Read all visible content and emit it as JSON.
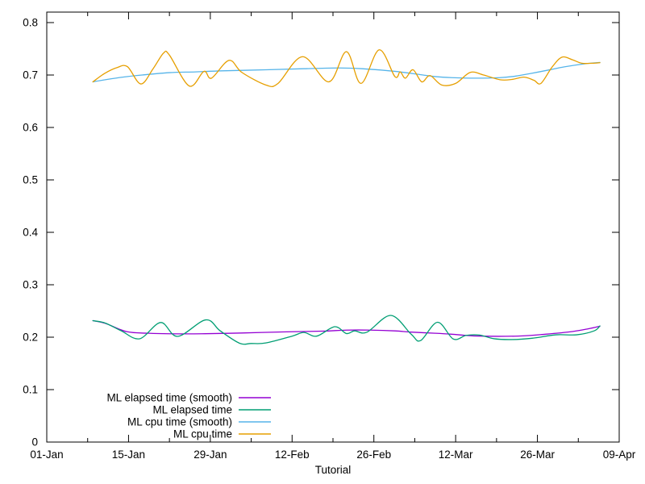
{
  "colors": {
    "background": "#FFFFFF",
    "axis": "#000000",
    "text": "#000000"
  },
  "chart_data": {
    "type": "line",
    "title": "",
    "xlabel": "Tutorial",
    "legend_position": "bottom-left-inside",
    "x_axis": {
      "unit": "date-days-since-jan-1",
      "range_days": [
        0,
        98
      ],
      "major_ticks": [
        {
          "day": 0,
          "label": "01-Jan"
        },
        {
          "day": 14,
          "label": "15-Jan"
        },
        {
          "day": 28,
          "label": "29-Jan"
        },
        {
          "day": 42,
          "label": "12-Feb"
        },
        {
          "day": 56,
          "label": "26-Feb"
        },
        {
          "day": 70,
          "label": "12-Mar"
        },
        {
          "day": 84,
          "label": "26-Mar"
        },
        {
          "day": 98,
          "label": "09-Apr"
        }
      ],
      "minor_tick_days": [
        7,
        21,
        35,
        49,
        63,
        77,
        91
      ]
    },
    "y_axis": {
      "range": [
        0,
        0.82
      ],
      "tick_values": [
        0,
        0.1,
        0.2,
        0.3,
        0.4,
        0.5,
        0.6,
        0.7,
        0.8
      ],
      "tick_labels": [
        "0",
        "0.1",
        "0.2",
        "0.3",
        "0.4",
        "0.5",
        "0.6",
        "0.7",
        "0.8"
      ],
      "grid": false
    },
    "series": [
      {
        "name": "ML elapsed time (smooth)",
        "color": "#9400D3",
        "points": [
          [
            7.9,
            0.2315
          ],
          [
            10,
            0.2265
          ],
          [
            13.7,
            0.2105
          ],
          [
            17.5,
            0.2075
          ],
          [
            21,
            0.2065
          ],
          [
            26.5,
            0.2065
          ],
          [
            33.4,
            0.208
          ],
          [
            40.3,
            0.21
          ],
          [
            47.2,
            0.2115
          ],
          [
            51.3,
            0.2135
          ],
          [
            55.5,
            0.2135
          ],
          [
            59.6,
            0.212
          ],
          [
            62.4,
            0.2097
          ],
          [
            66.5,
            0.2075
          ],
          [
            69.3,
            0.2057
          ],
          [
            73.8,
            0.2022
          ],
          [
            80.7,
            0.2021
          ],
          [
            85.4,
            0.2057
          ],
          [
            90,
            0.2108
          ],
          [
            92.7,
            0.216
          ],
          [
            94.7,
            0.221
          ]
        ]
      },
      {
        "name": "ML elapsed time",
        "color": "#009E73",
        "points": [
          [
            7.9,
            0.2315
          ],
          [
            10,
            0.227
          ],
          [
            12.7,
            0.2125
          ],
          [
            15.9,
            0.197
          ],
          [
            19.5,
            0.228
          ],
          [
            22.4,
            0.2015
          ],
          [
            27.2,
            0.233
          ],
          [
            29.7,
            0.212
          ],
          [
            33,
            0.1885
          ],
          [
            35,
            0.188
          ],
          [
            37.5,
            0.189
          ],
          [
            42,
            0.202
          ],
          [
            44,
            0.209
          ],
          [
            46.2,
            0.202
          ],
          [
            49.3,
            0.22
          ],
          [
            51.3,
            0.207
          ],
          [
            52.7,
            0.212
          ],
          [
            54.8,
            0.2095
          ],
          [
            58.9,
            0.2415
          ],
          [
            62.4,
            0.2055
          ],
          [
            64,
            0.1935
          ],
          [
            66.9,
            0.2285
          ],
          [
            69.6,
            0.1965
          ],
          [
            71.8,
            0.2035
          ],
          [
            74.1,
            0.204
          ],
          [
            76.6,
            0.197
          ],
          [
            79.6,
            0.1955
          ],
          [
            83.1,
            0.198
          ],
          [
            87.2,
            0.2045
          ],
          [
            90.7,
            0.2045
          ],
          [
            93.7,
            0.212
          ],
          [
            94.7,
            0.2215
          ]
        ]
      },
      {
        "name": "ML cpu time (smooth)",
        "color": "#56B4E9",
        "points": [
          [
            7.9,
            0.687
          ],
          [
            10,
            0.691
          ],
          [
            13,
            0.696
          ],
          [
            16.3,
            0.7
          ],
          [
            21,
            0.7045
          ],
          [
            25.5,
            0.706
          ],
          [
            30,
            0.708
          ],
          [
            37.5,
            0.71
          ],
          [
            44,
            0.712
          ],
          [
            50,
            0.7135
          ],
          [
            54,
            0.712
          ],
          [
            59.6,
            0.707
          ],
          [
            63.8,
            0.701
          ],
          [
            66.5,
            0.697
          ],
          [
            69.3,
            0.695
          ],
          [
            73.4,
            0.694
          ],
          [
            77.6,
            0.695
          ],
          [
            80.3,
            0.698
          ],
          [
            83.1,
            0.7035
          ],
          [
            85.9,
            0.7095
          ],
          [
            88.6,
            0.7155
          ],
          [
            92.2,
            0.7215
          ],
          [
            94.7,
            0.724
          ]
        ]
      },
      {
        "name": "ML cpu time",
        "color": "#E69F00",
        "points": [
          [
            7.9,
            0.687
          ],
          [
            9.9,
            0.703
          ],
          [
            12,
            0.714
          ],
          [
            13.8,
            0.716
          ],
          [
            16.1,
            0.683
          ],
          [
            18.2,
            0.712
          ],
          [
            20,
            0.742
          ],
          [
            21,
            0.738
          ],
          [
            24.4,
            0.679
          ],
          [
            26.9,
            0.707
          ],
          [
            28.2,
            0.694
          ],
          [
            31.2,
            0.728
          ],
          [
            33.4,
            0.705
          ],
          [
            37.5,
            0.681
          ],
          [
            39.6,
            0.684
          ],
          [
            43.8,
            0.735
          ],
          [
            48.3,
            0.687
          ],
          [
            51.3,
            0.7445
          ],
          [
            53.8,
            0.684
          ],
          [
            56.9,
            0.748
          ],
          [
            59.6,
            0.697
          ],
          [
            60.5,
            0.706
          ],
          [
            61.4,
            0.694
          ],
          [
            62.7,
            0.71
          ],
          [
            64.2,
            0.687
          ],
          [
            65.6,
            0.699
          ],
          [
            67.6,
            0.681
          ],
          [
            70,
            0.684
          ],
          [
            72.5,
            0.705
          ],
          [
            74.8,
            0.7
          ],
          [
            77.6,
            0.691
          ],
          [
            79.6,
            0.6915
          ],
          [
            81.7,
            0.696
          ],
          [
            83.4,
            0.69
          ],
          [
            84.6,
            0.684
          ],
          [
            86.5,
            0.715
          ],
          [
            88.2,
            0.734
          ],
          [
            90,
            0.729
          ],
          [
            91.6,
            0.7225
          ],
          [
            93.4,
            0.7225
          ],
          [
            94.7,
            0.7235
          ]
        ]
      }
    ]
  }
}
